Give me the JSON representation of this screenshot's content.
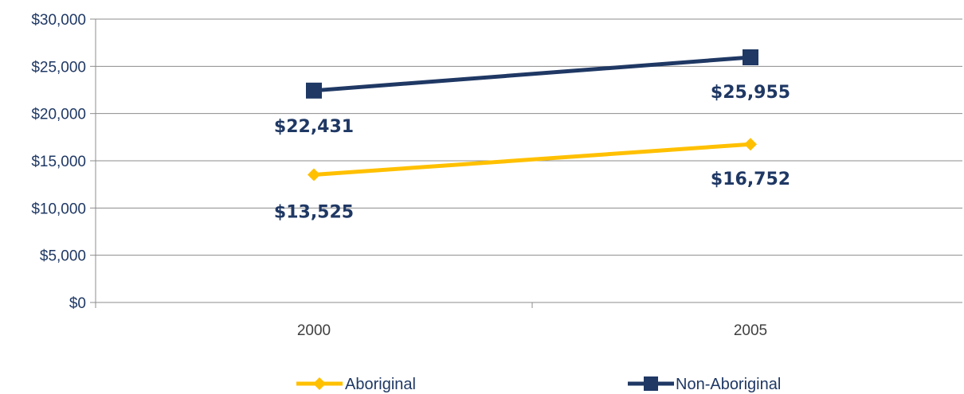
{
  "chart_data": {
    "type": "line",
    "categories": [
      "2000",
      "2005"
    ],
    "series": [
      {
        "name": "Aboriginal",
        "values": [
          13525,
          16752
        ],
        "labels": [
          "$13,525",
          "$16,752"
        ],
        "color": "#ffc000",
        "marker": "diamond"
      },
      {
        "name": "Non-Aboriginal",
        "values": [
          22431,
          25955
        ],
        "labels": [
          "$22,431",
          "$25,955"
        ],
        "color": "#1f3864",
        "marker": "square"
      }
    ],
    "ylim": [
      0,
      30000
    ],
    "yticks": [
      0,
      5000,
      10000,
      15000,
      20000,
      25000,
      30000
    ],
    "ytick_labels": [
      "$0",
      "$5,000",
      "$10,000",
      "$15,000",
      "$20,000",
      "$25,000",
      "$30,000"
    ],
    "grid": true,
    "legend_position": "bottom",
    "title": "",
    "xlabel": "",
    "ylabel": ""
  }
}
